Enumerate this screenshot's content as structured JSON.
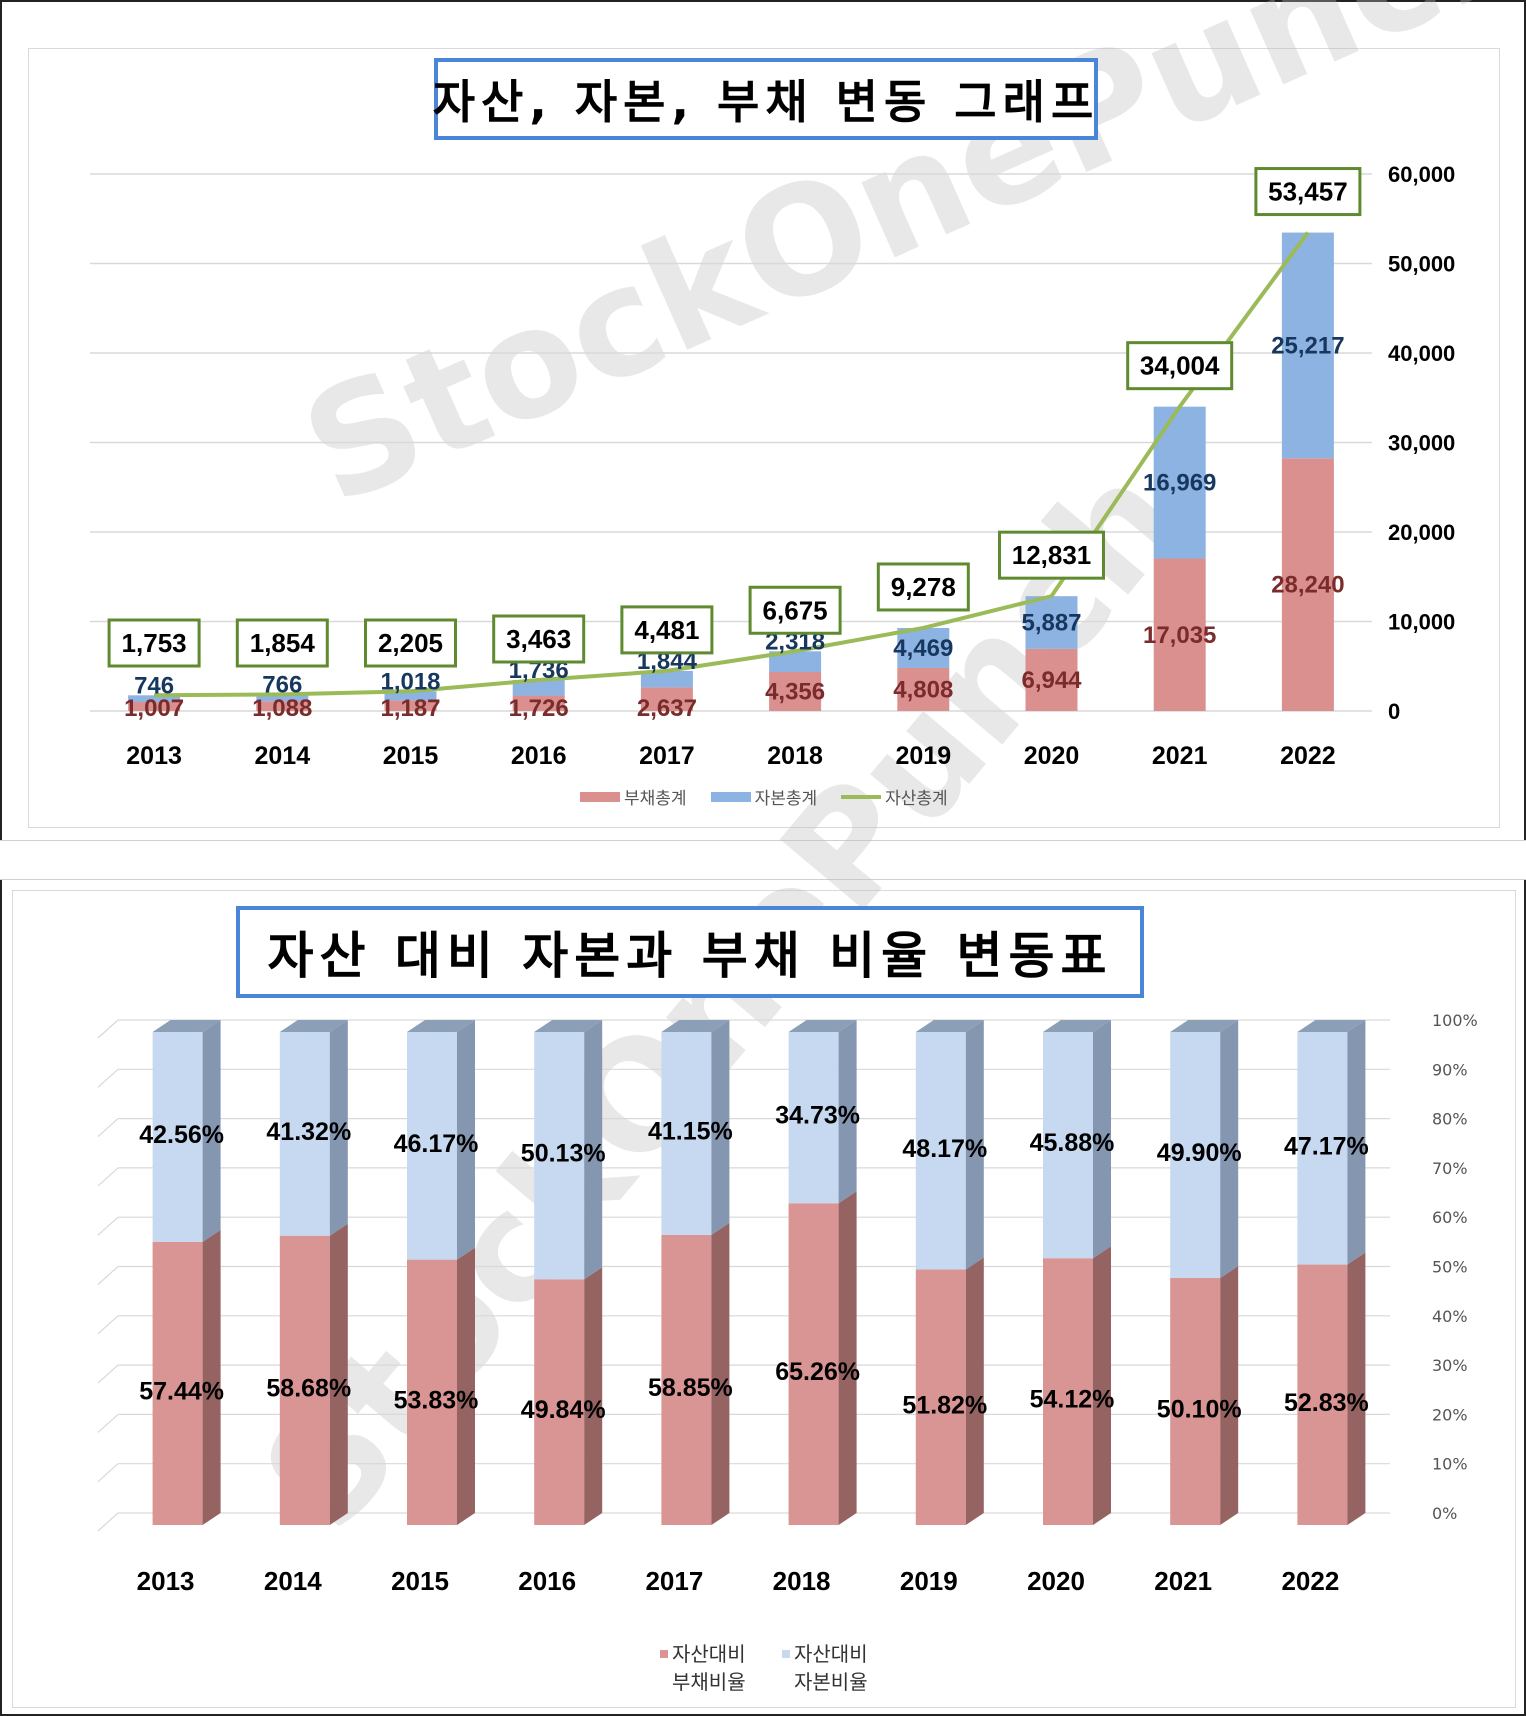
{
  "top": {
    "title": "자산, 자본, 부채 변동 그래프",
    "watermark": "StockOnePunch",
    "legend": {
      "liabilities": "부채총계",
      "equity": "자본총계",
      "assets": "자산총계"
    }
  },
  "bottom": {
    "title": "자산 대비 자본과 부채 비율 변동표",
    "watermark": "StockOnePunch",
    "legend": {
      "debt_line1": "자산대비",
      "debt_line2": "부채비율",
      "equity_line1": "자산대비",
      "equity_line2": "자본비율"
    }
  },
  "colors": {
    "liabilities": "#db9090",
    "equity": "#8db3e2",
    "assets": "#9bbb59",
    "liab_label": "#7a2b2b",
    "equity_label": "#17375e",
    "ratio_debt": "#d99594",
    "ratio_equity": "#c6d9f1",
    "title_border": "#4a86d8"
  },
  "chart_data": [
    {
      "type": "bar",
      "stacked": true,
      "categories": [
        "2013",
        "2014",
        "2015",
        "2016",
        "2017",
        "2018",
        "2019",
        "2020",
        "2021",
        "2022"
      ],
      "series": [
        {
          "name": "부채총계",
          "values": [
            1007,
            1088,
            1187,
            1726,
            2637,
            4356,
            4808,
            6944,
            17035,
            28240
          ],
          "labels": [
            "1,007",
            "1,088",
            "1,187",
            "1,726",
            "2,637",
            "4,356",
            "4,808",
            "6,944",
            "17,035",
            "28,240"
          ]
        },
        {
          "name": "자본총계",
          "values": [
            746,
            766,
            1018,
            1736,
            1844,
            2318,
            4469,
            5887,
            16969,
            25217
          ],
          "labels": [
            "746",
            "766",
            "1,018",
            "1,736",
            "1,844",
            "2,318",
            "4,469",
            "5,887",
            "16,969",
            "25,217"
          ]
        },
        {
          "name": "자산총계",
          "type": "line",
          "values": [
            1753,
            1854,
            2205,
            3463,
            4481,
            6675,
            9278,
            12831,
            34004,
            53457
          ],
          "labels": [
            "1,753",
            "1,854",
            "2,205",
            "3,463",
            "4,481",
            "6,675",
            "9,278",
            "12,831",
            "34,004",
            "53,457"
          ]
        }
      ],
      "y_axis": {
        "side": "right",
        "ylim": [
          0,
          60000
        ],
        "ticks": [
          "0",
          "10,000",
          "20,000",
          "30,000",
          "40,000",
          "50,000",
          "60,000"
        ]
      },
      "grid": true,
      "legend": "bottom"
    },
    {
      "type": "bar",
      "stacked": true,
      "style": "3d-percent",
      "categories": [
        "2013",
        "2014",
        "2015",
        "2016",
        "2017",
        "2018",
        "2019",
        "2020",
        "2021",
        "2022"
      ],
      "series": [
        {
          "name": "자산대비 부채비율",
          "values": [
            57.44,
            58.68,
            53.83,
            49.84,
            58.85,
            65.26,
            51.82,
            54.12,
            50.1,
            52.83
          ],
          "labels": [
            "57.44%",
            "58.68%",
            "53.83%",
            "49.84%",
            "58.85%",
            "65.26%",
            "51.82%",
            "54.12%",
            "50.10%",
            "52.83%"
          ]
        },
        {
          "name": "자산대비 자본비율",
          "values": [
            42.56,
            41.32,
            46.17,
            50.13,
            41.15,
            34.73,
            48.17,
            45.88,
            49.9,
            47.17
          ],
          "labels": [
            "42.56%",
            "41.32%",
            "46.17%",
            "50.13%",
            "41.15%",
            "34.73%",
            "48.17%",
            "45.88%",
            "49.90%",
            "47.17%"
          ]
        }
      ],
      "y_axis": {
        "side": "right",
        "ylim": [
          0,
          100
        ],
        "ticks": [
          "0%",
          "10%",
          "20%",
          "30%",
          "40%",
          "50%",
          "60%",
          "70%",
          "80%",
          "90%",
          "100%"
        ]
      },
      "grid": true,
      "legend": "bottom"
    }
  ]
}
